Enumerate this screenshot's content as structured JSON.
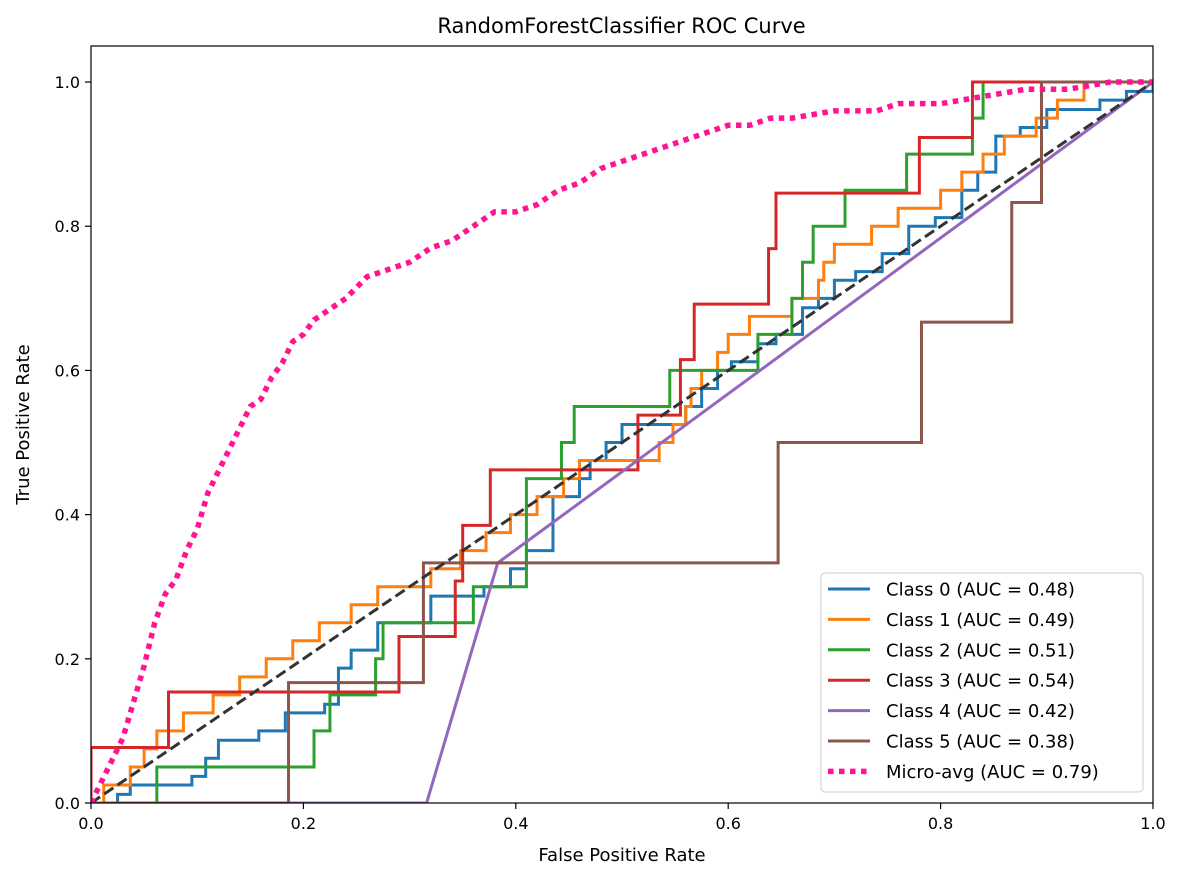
{
  "chart_data": {
    "type": "line",
    "title": "RandomForestClassifier ROC Curve",
    "xlabel": "False Positive Rate",
    "ylabel": "True Positive Rate",
    "xlim": [
      0.0,
      1.0
    ],
    "ylim": [
      0.0,
      1.05
    ],
    "xticks": [
      "0.0",
      "0.2",
      "0.4",
      "0.6",
      "0.8",
      "1.0"
    ],
    "yticks": [
      "0.0",
      "0.2",
      "0.4",
      "0.6",
      "0.8",
      "1.0"
    ],
    "grid": false,
    "legend_position": "lower right",
    "reference_line": {
      "points": [
        [
          0,
          0
        ],
        [
          1,
          1
        ]
      ],
      "style": "dashed",
      "color": "#333333"
    },
    "series": [
      {
        "name": "Class 0 (AUC = 0.48)",
        "color": "#1f77b4",
        "style": "solid",
        "points": [
          [
            0,
            0
          ],
          [
            0.025,
            0
          ],
          [
            0.025,
            0.012
          ],
          [
            0.037,
            0.012
          ],
          [
            0.037,
            0.025
          ],
          [
            0.095,
            0.025
          ],
          [
            0.095,
            0.037
          ],
          [
            0.108,
            0.037
          ],
          [
            0.108,
            0.062
          ],
          [
            0.12,
            0.062
          ],
          [
            0.12,
            0.087
          ],
          [
            0.158,
            0.087
          ],
          [
            0.158,
            0.1
          ],
          [
            0.183,
            0.1
          ],
          [
            0.183,
            0.125
          ],
          [
            0.22,
            0.125
          ],
          [
            0.22,
            0.137
          ],
          [
            0.233,
            0.137
          ],
          [
            0.233,
            0.187
          ],
          [
            0.245,
            0.187
          ],
          [
            0.245,
            0.212
          ],
          [
            0.27,
            0.212
          ],
          [
            0.27,
            0.25
          ],
          [
            0.32,
            0.25
          ],
          [
            0.32,
            0.287
          ],
          [
            0.37,
            0.287
          ],
          [
            0.37,
            0.3
          ],
          [
            0.395,
            0.3
          ],
          [
            0.395,
            0.325
          ],
          [
            0.41,
            0.325
          ],
          [
            0.41,
            0.35
          ],
          [
            0.435,
            0.35
          ],
          [
            0.435,
            0.425
          ],
          [
            0.46,
            0.425
          ],
          [
            0.46,
            0.45
          ],
          [
            0.47,
            0.45
          ],
          [
            0.47,
            0.475
          ],
          [
            0.485,
            0.475
          ],
          [
            0.485,
            0.5
          ],
          [
            0.5,
            0.5
          ],
          [
            0.5,
            0.525
          ],
          [
            0.56,
            0.525
          ],
          [
            0.56,
            0.55
          ],
          [
            0.575,
            0.55
          ],
          [
            0.575,
            0.575
          ],
          [
            0.59,
            0.575
          ],
          [
            0.59,
            0.6
          ],
          [
            0.603,
            0.6
          ],
          [
            0.603,
            0.612
          ],
          [
            0.628,
            0.612
          ],
          [
            0.628,
            0.637
          ],
          [
            0.645,
            0.637
          ],
          [
            0.645,
            0.65
          ],
          [
            0.67,
            0.65
          ],
          [
            0.67,
            0.687
          ],
          [
            0.685,
            0.687
          ],
          [
            0.685,
            0.7
          ],
          [
            0.7,
            0.7
          ],
          [
            0.7,
            0.725
          ],
          [
            0.72,
            0.725
          ],
          [
            0.72,
            0.737
          ],
          [
            0.745,
            0.737
          ],
          [
            0.745,
            0.762
          ],
          [
            0.77,
            0.762
          ],
          [
            0.77,
            0.8
          ],
          [
            0.795,
            0.8
          ],
          [
            0.795,
            0.812
          ],
          [
            0.82,
            0.812
          ],
          [
            0.82,
            0.85
          ],
          [
            0.835,
            0.85
          ],
          [
            0.835,
            0.875
          ],
          [
            0.852,
            0.875
          ],
          [
            0.852,
            0.925
          ],
          [
            0.875,
            0.925
          ],
          [
            0.875,
            0.937
          ],
          [
            0.9,
            0.937
          ],
          [
            0.9,
            0.962
          ],
          [
            0.95,
            0.962
          ],
          [
            0.95,
            0.975
          ],
          [
            0.975,
            0.975
          ],
          [
            0.975,
            0.987
          ],
          [
            1,
            0.987
          ],
          [
            1,
            1
          ]
        ]
      },
      {
        "name": "Class 1 (AUC = 0.49)",
        "color": "#ff7f0e",
        "style": "solid",
        "points": [
          [
            0,
            0
          ],
          [
            0.012,
            0
          ],
          [
            0.012,
            0.025
          ],
          [
            0.037,
            0.025
          ],
          [
            0.037,
            0.05
          ],
          [
            0.05,
            0.05
          ],
          [
            0.05,
            0.075
          ],
          [
            0.062,
            0.075
          ],
          [
            0.062,
            0.1
          ],
          [
            0.087,
            0.1
          ],
          [
            0.087,
            0.125
          ],
          [
            0.115,
            0.125
          ],
          [
            0.115,
            0.15
          ],
          [
            0.14,
            0.15
          ],
          [
            0.14,
            0.175
          ],
          [
            0.165,
            0.175
          ],
          [
            0.165,
            0.2
          ],
          [
            0.19,
            0.2
          ],
          [
            0.19,
            0.225
          ],
          [
            0.215,
            0.225
          ],
          [
            0.215,
            0.25
          ],
          [
            0.245,
            0.25
          ],
          [
            0.245,
            0.275
          ],
          [
            0.27,
            0.275
          ],
          [
            0.27,
            0.3
          ],
          [
            0.32,
            0.3
          ],
          [
            0.32,
            0.325
          ],
          [
            0.348,
            0.325
          ],
          [
            0.348,
            0.35
          ],
          [
            0.372,
            0.35
          ],
          [
            0.372,
            0.375
          ],
          [
            0.395,
            0.375
          ],
          [
            0.395,
            0.4
          ],
          [
            0.42,
            0.4
          ],
          [
            0.42,
            0.425
          ],
          [
            0.445,
            0.425
          ],
          [
            0.445,
            0.45
          ],
          [
            0.46,
            0.45
          ],
          [
            0.46,
            0.475
          ],
          [
            0.535,
            0.475
          ],
          [
            0.535,
            0.5
          ],
          [
            0.548,
            0.5
          ],
          [
            0.548,
            0.525
          ],
          [
            0.56,
            0.525
          ],
          [
            0.56,
            0.55
          ],
          [
            0.565,
            0.55
          ],
          [
            0.565,
            0.575
          ],
          [
            0.575,
            0.575
          ],
          [
            0.575,
            0.6
          ],
          [
            0.59,
            0.6
          ],
          [
            0.59,
            0.625
          ],
          [
            0.6,
            0.625
          ],
          [
            0.6,
            0.65
          ],
          [
            0.62,
            0.65
          ],
          [
            0.62,
            0.675
          ],
          [
            0.66,
            0.675
          ],
          [
            0.66,
            0.7
          ],
          [
            0.685,
            0.7
          ],
          [
            0.685,
            0.725
          ],
          [
            0.69,
            0.725
          ],
          [
            0.69,
            0.75
          ],
          [
            0.7,
            0.75
          ],
          [
            0.7,
            0.775
          ],
          [
            0.735,
            0.775
          ],
          [
            0.735,
            0.8
          ],
          [
            0.76,
            0.8
          ],
          [
            0.76,
            0.825
          ],
          [
            0.8,
            0.825
          ],
          [
            0.8,
            0.85
          ],
          [
            0.82,
            0.85
          ],
          [
            0.82,
            0.875
          ],
          [
            0.84,
            0.875
          ],
          [
            0.84,
            0.9
          ],
          [
            0.86,
            0.9
          ],
          [
            0.86,
            0.925
          ],
          [
            0.89,
            0.925
          ],
          [
            0.89,
            0.95
          ],
          [
            0.91,
            0.95
          ],
          [
            0.91,
            0.975
          ],
          [
            0.935,
            0.975
          ],
          [
            0.935,
            1
          ],
          [
            1,
            1
          ]
        ]
      },
      {
        "name": "Class 2 (AUC = 0.51)",
        "color": "#2ca02c",
        "style": "solid",
        "points": [
          [
            0,
            0
          ],
          [
            0.062,
            0
          ],
          [
            0.062,
            0.05
          ],
          [
            0.21,
            0.05
          ],
          [
            0.21,
            0.1
          ],
          [
            0.225,
            0.1
          ],
          [
            0.225,
            0.15
          ],
          [
            0.268,
            0.15
          ],
          [
            0.268,
            0.2
          ],
          [
            0.275,
            0.2
          ],
          [
            0.275,
            0.25
          ],
          [
            0.36,
            0.25
          ],
          [
            0.36,
            0.3
          ],
          [
            0.41,
            0.3
          ],
          [
            0.41,
            0.45
          ],
          [
            0.443,
            0.45
          ],
          [
            0.443,
            0.5
          ],
          [
            0.455,
            0.5
          ],
          [
            0.455,
            0.55
          ],
          [
            0.545,
            0.55
          ],
          [
            0.545,
            0.6
          ],
          [
            0.628,
            0.6
          ],
          [
            0.628,
            0.65
          ],
          [
            0.66,
            0.65
          ],
          [
            0.66,
            0.7
          ],
          [
            0.67,
            0.7
          ],
          [
            0.67,
            0.75
          ],
          [
            0.68,
            0.75
          ],
          [
            0.68,
            0.8
          ],
          [
            0.71,
            0.8
          ],
          [
            0.71,
            0.85
          ],
          [
            0.768,
            0.85
          ],
          [
            0.768,
            0.9
          ],
          [
            0.83,
            0.9
          ],
          [
            0.83,
            0.95
          ],
          [
            0.84,
            0.95
          ],
          [
            0.84,
            1
          ],
          [
            1,
            1
          ]
        ]
      },
      {
        "name": "Class 3 (AUC = 0.54)",
        "color": "#d62728",
        "style": "solid",
        "points": [
          [
            0,
            0
          ],
          [
            0,
            0.077
          ],
          [
            0.073,
            0.077
          ],
          [
            0.073,
            0.154
          ],
          [
            0.29,
            0.154
          ],
          [
            0.29,
            0.231
          ],
          [
            0.343,
            0.231
          ],
          [
            0.343,
            0.308
          ],
          [
            0.35,
            0.308
          ],
          [
            0.35,
            0.385
          ],
          [
            0.376,
            0.385
          ],
          [
            0.376,
            0.462
          ],
          [
            0.515,
            0.462
          ],
          [
            0.515,
            0.538
          ],
          [
            0.555,
            0.538
          ],
          [
            0.555,
            0.615
          ],
          [
            0.568,
            0.615
          ],
          [
            0.568,
            0.692
          ],
          [
            0.638,
            0.692
          ],
          [
            0.638,
            0.769
          ],
          [
            0.645,
            0.769
          ],
          [
            0.645,
            0.846
          ],
          [
            0.78,
            0.846
          ],
          [
            0.78,
            0.923
          ],
          [
            0.83,
            0.923
          ],
          [
            0.83,
            1
          ],
          [
            1,
            1
          ]
        ]
      },
      {
        "name": "Class 4 (AUC = 0.42)",
        "color": "#9467bd",
        "style": "solid",
        "points": [
          [
            0,
            0
          ],
          [
            0.316,
            0
          ],
          [
            0.383,
            0.333
          ],
          [
            1,
            1
          ]
        ]
      },
      {
        "name": "Class 5 (AUC = 0.38)",
        "color": "#8c564b",
        "style": "solid",
        "points": [
          [
            0,
            0
          ],
          [
            0.186,
            0
          ],
          [
            0.186,
            0.167
          ],
          [
            0.313,
            0.167
          ],
          [
            0.313,
            0.333
          ],
          [
            0.647,
            0.333
          ],
          [
            0.647,
            0.5
          ],
          [
            0.782,
            0.5
          ],
          [
            0.782,
            0.667
          ],
          [
            0.867,
            0.667
          ],
          [
            0.867,
            0.833
          ],
          [
            0.895,
            0.833
          ],
          [
            0.895,
            1
          ],
          [
            1,
            1
          ]
        ]
      },
      {
        "name": "Micro-avg (AUC = 0.79)",
        "color": "#ff1493",
        "style": "dotted",
        "points": [
          [
            0,
            0
          ],
          [
            0.01,
            0.03
          ],
          [
            0.02,
            0.06
          ],
          [
            0.03,
            0.09
          ],
          [
            0.04,
            0.14
          ],
          [
            0.05,
            0.19
          ],
          [
            0.06,
            0.25
          ],
          [
            0.07,
            0.29
          ],
          [
            0.08,
            0.31
          ],
          [
            0.09,
            0.35
          ],
          [
            0.1,
            0.38
          ],
          [
            0.11,
            0.43
          ],
          [
            0.12,
            0.46
          ],
          [
            0.13,
            0.49
          ],
          [
            0.14,
            0.52
          ],
          [
            0.15,
            0.55
          ],
          [
            0.16,
            0.56
          ],
          [
            0.17,
            0.59
          ],
          [
            0.18,
            0.61
          ],
          [
            0.19,
            0.64
          ],
          [
            0.2,
            0.65
          ],
          [
            0.21,
            0.67
          ],
          [
            0.22,
            0.68
          ],
          [
            0.24,
            0.7
          ],
          [
            0.26,
            0.73
          ],
          [
            0.28,
            0.74
          ],
          [
            0.3,
            0.75
          ],
          [
            0.32,
            0.77
          ],
          [
            0.34,
            0.78
          ],
          [
            0.36,
            0.8
          ],
          [
            0.38,
            0.82
          ],
          [
            0.4,
            0.82
          ],
          [
            0.42,
            0.83
          ],
          [
            0.44,
            0.85
          ],
          [
            0.46,
            0.86
          ],
          [
            0.48,
            0.88
          ],
          [
            0.5,
            0.89
          ],
          [
            0.52,
            0.9
          ],
          [
            0.54,
            0.91
          ],
          [
            0.56,
            0.92
          ],
          [
            0.58,
            0.93
          ],
          [
            0.6,
            0.94
          ],
          [
            0.62,
            0.94
          ],
          [
            0.64,
            0.95
          ],
          [
            0.66,
            0.95
          ],
          [
            0.7,
            0.96
          ],
          [
            0.74,
            0.96
          ],
          [
            0.76,
            0.97
          ],
          [
            0.8,
            0.97
          ],
          [
            0.84,
            0.98
          ],
          [
            0.88,
            0.99
          ],
          [
            0.92,
            0.99
          ],
          [
            0.96,
            1
          ],
          [
            1,
            1
          ]
        ]
      }
    ]
  }
}
